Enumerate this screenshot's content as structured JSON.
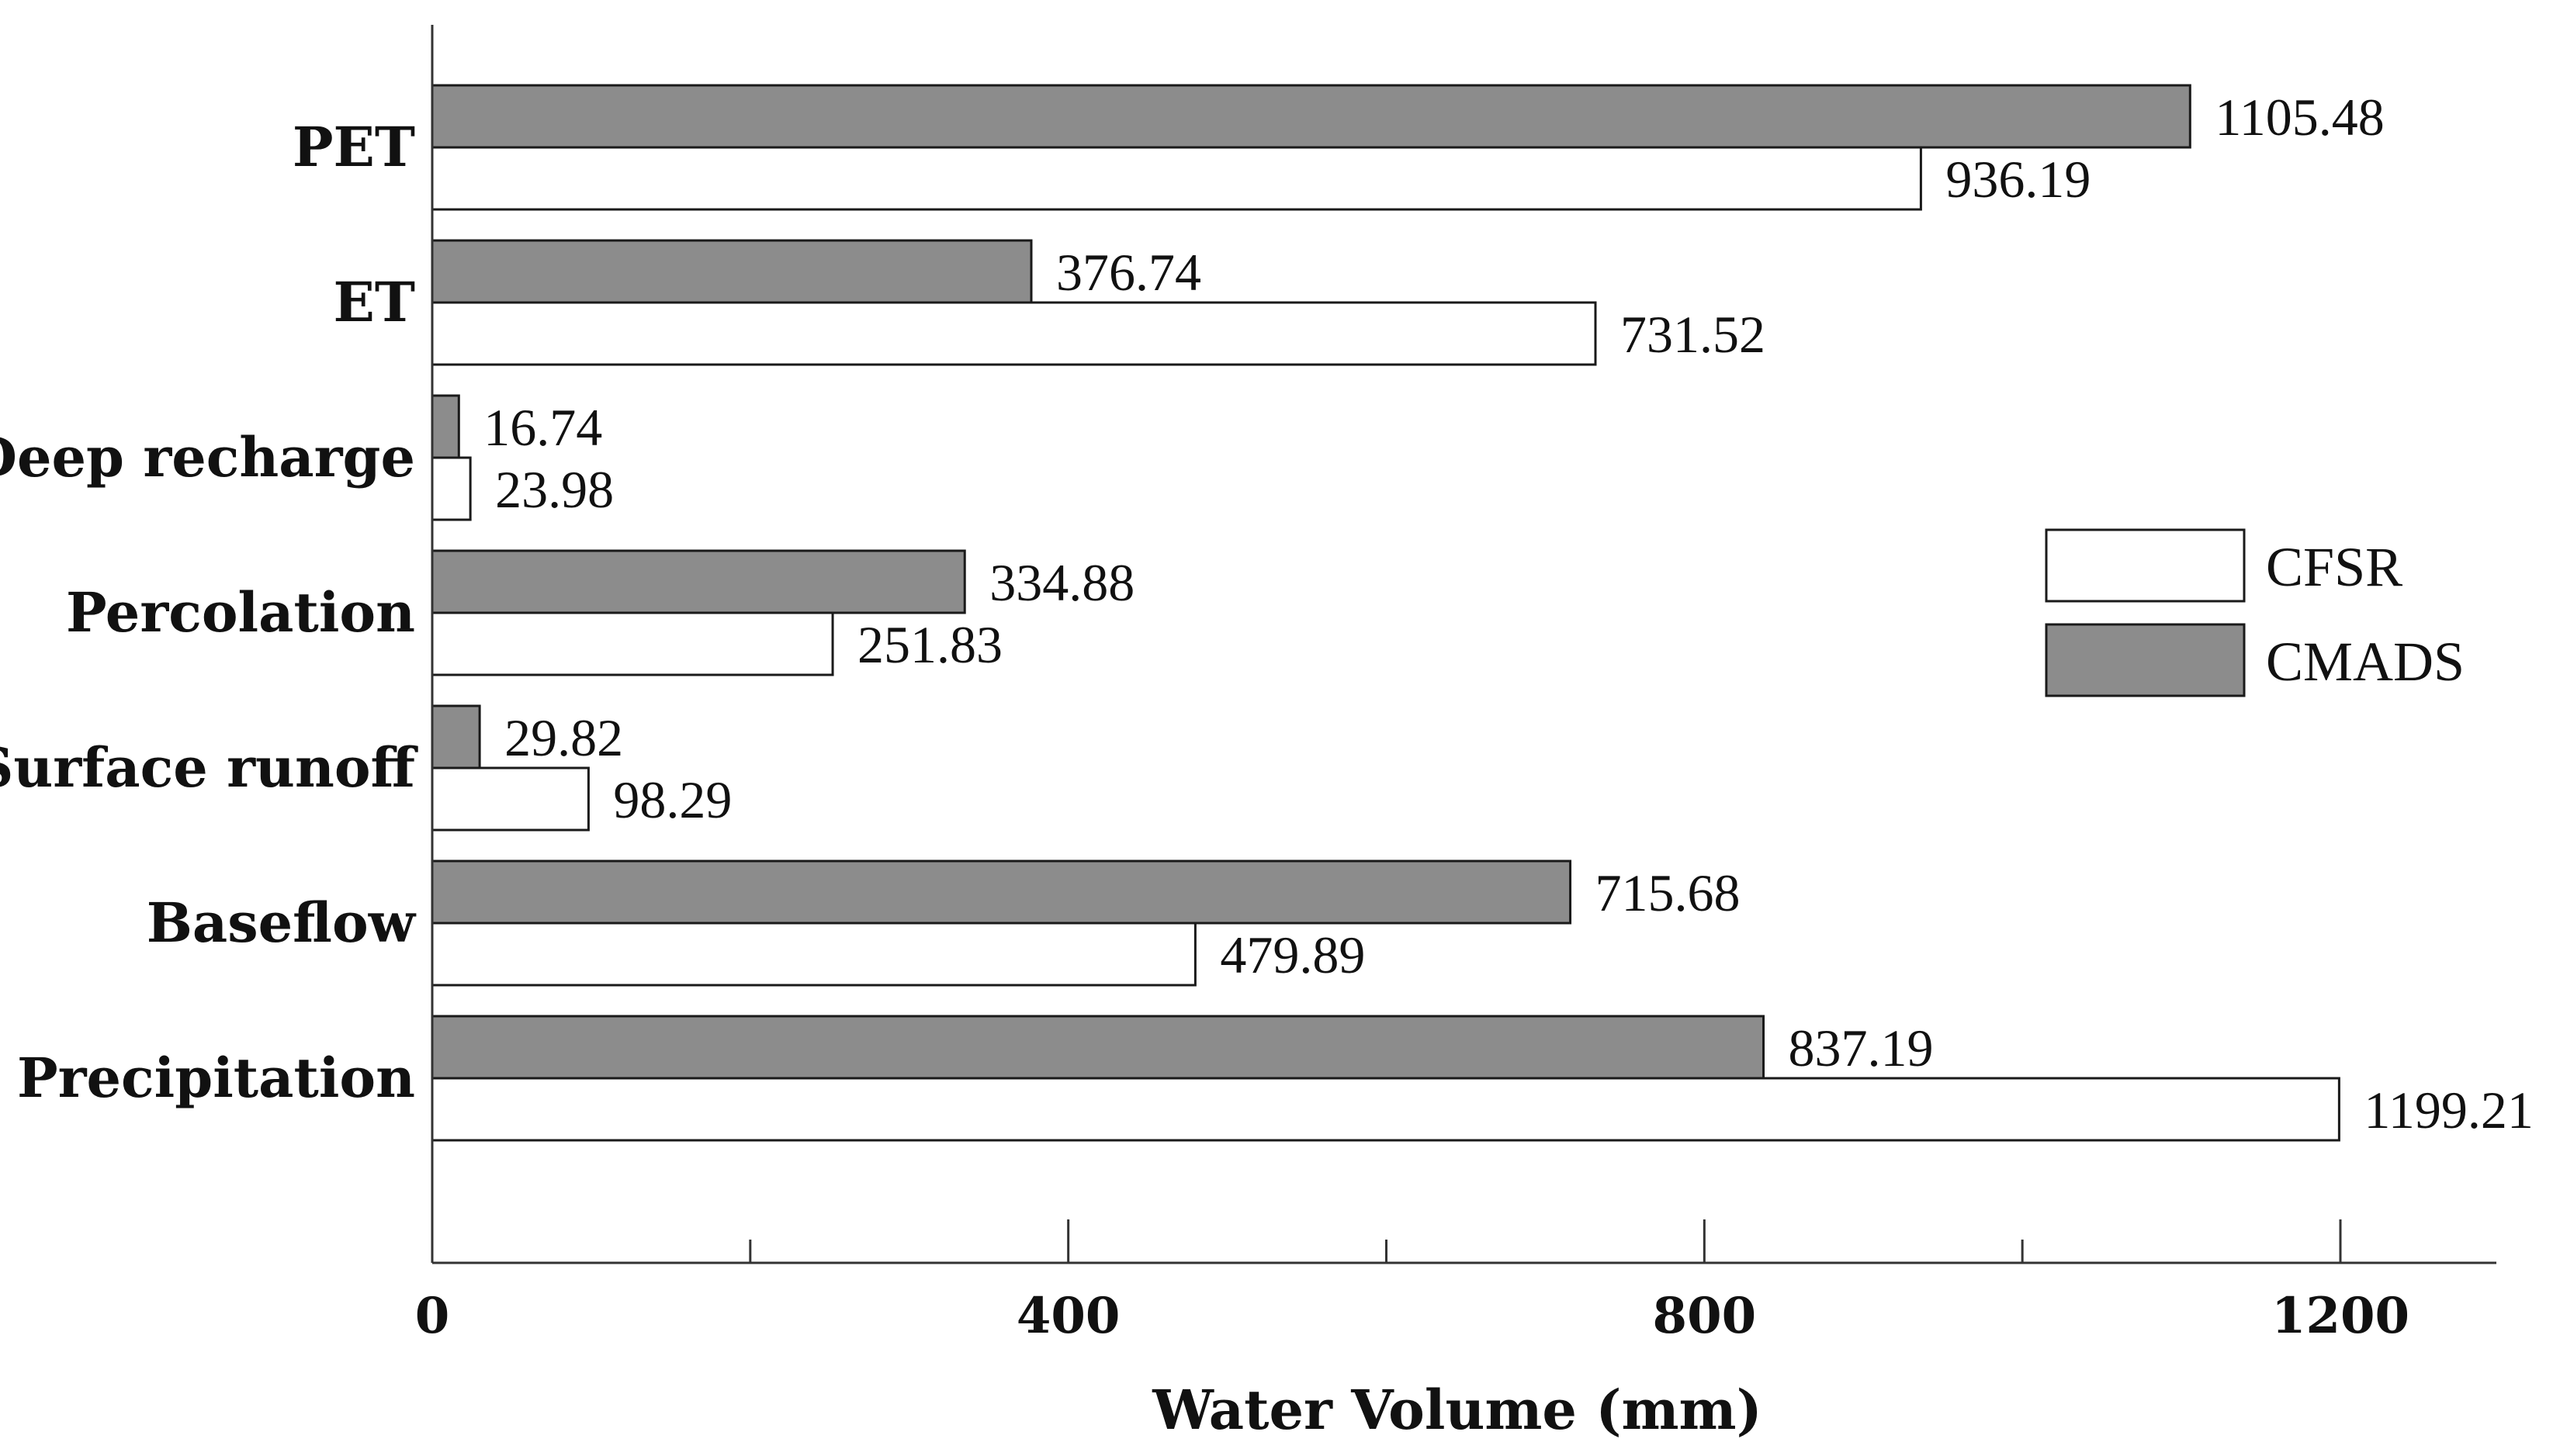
{
  "chart_data": {
    "type": "bar",
    "orientation": "horizontal",
    "categories": [
      "PET",
      "ET",
      "Deep recharge",
      "Percolation",
      "Surface runoff",
      "Baseflow",
      "Precipitation"
    ],
    "series": [
      {
        "name": "CMADS",
        "color": "#8c8c8c",
        "values": [
          1105.48,
          376.74,
          16.74,
          334.88,
          29.82,
          715.68,
          837.19
        ],
        "labels": [
          "1105.48",
          "376.74",
          "16.74",
          "334.88",
          "29.82",
          "715.68",
          "837.19"
        ]
      },
      {
        "name": "CFSR",
        "color": "#ffffff",
        "values": [
          936.19,
          731.52,
          23.98,
          251.83,
          98.29,
          479.89,
          1199.21
        ],
        "labels": [
          "936.19",
          "731.52",
          "23.98",
          "251.83",
          "98.29",
          "479.89",
          "1199.21"
        ]
      }
    ],
    "xlabel": "Water Volume (mm)",
    "ylabel": "",
    "xlim": [
      0,
      1300
    ],
    "x_ticks": [
      0,
      400,
      800,
      1200
    ],
    "x_tick_labels": [
      "0",
      "400",
      "800",
      "1200"
    ],
    "x_minor_ticks": [
      200,
      600,
      1000
    ],
    "legend": {
      "position": "right",
      "entries": [
        {
          "name": "CFSR",
          "color": "#ffffff"
        },
        {
          "name": "CMADS",
          "color": "#8c8c8c"
        }
      ]
    },
    "grid": false
  }
}
